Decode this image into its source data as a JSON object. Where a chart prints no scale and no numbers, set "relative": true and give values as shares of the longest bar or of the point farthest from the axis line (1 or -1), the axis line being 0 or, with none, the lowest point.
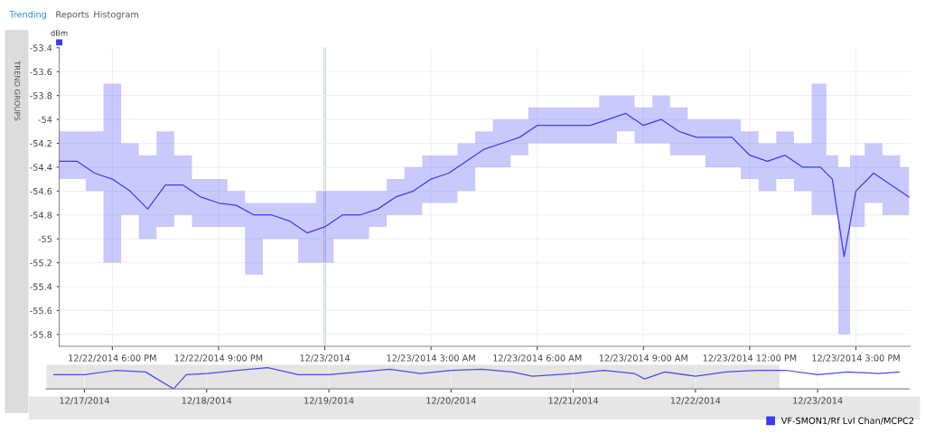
{
  "chart_data": [
    {
      "type": "line",
      "ylabel": "dBm",
      "annotations": [
        "Trending",
        "Reports",
        "Histogram",
        "TREND GROUPS"
      ],
      "x": [
        "2014-12-22T16:30",
        "2014-12-22T17:00",
        "2014-12-22T17:30",
        "2014-12-22T18:00",
        "2014-12-22T18:30",
        "2014-12-22T19:00",
        "2014-12-22T19:30",
        "2014-12-22T20:00",
        "2014-12-22T20:30",
        "2014-12-22T21:00",
        "2014-12-22T21:30",
        "2014-12-22T22:00",
        "2014-12-22T22:30",
        "2014-12-22T23:00",
        "2014-12-22T23:30",
        "2014-12-23T00:00",
        "2014-12-23T00:30",
        "2014-12-23T01:00",
        "2014-12-23T01:30",
        "2014-12-23T02:00",
        "2014-12-23T02:30",
        "2014-12-23T03:00",
        "2014-12-23T03:30",
        "2014-12-23T04:00",
        "2014-12-23T04:30",
        "2014-12-23T05:00",
        "2014-12-23T05:30",
        "2014-12-23T06:00",
        "2014-12-23T06:30",
        "2014-12-23T07:00",
        "2014-12-23T07:30",
        "2014-12-23T08:00",
        "2014-12-23T08:30",
        "2014-12-23T09:00",
        "2014-12-23T09:30",
        "2014-12-23T10:00",
        "2014-12-23T10:30",
        "2014-12-23T11:00",
        "2014-12-23T11:30",
        "2014-12-23T12:00",
        "2014-12-23T12:30",
        "2014-12-23T13:00",
        "2014-12-23T13:30",
        "2014-12-23T14:00",
        "2014-12-23T14:20",
        "2014-12-23T14:40",
        "2014-12-23T15:00",
        "2014-12-23T15:30",
        "2014-12-23T16:00",
        "2014-12-23T16:30"
      ],
      "series": [
        {
          "name": "VF-SMON1/Rf Lvl Chan/MCPC2",
          "color": "#3c3cf0",
          "values": [
            -54.35,
            -54.35,
            -54.45,
            -54.5,
            -54.6,
            -54.75,
            -54.55,
            -54.55,
            -54.65,
            -54.7,
            -54.72,
            -54.8,
            -54.8,
            -54.85,
            -54.95,
            -54.9,
            -54.8,
            -54.8,
            -54.75,
            -54.65,
            -54.6,
            -54.5,
            -54.45,
            -54.35,
            -54.25,
            -54.2,
            -54.15,
            -54.05,
            -54.05,
            -54.05,
            -54.05,
            -54.0,
            -53.95,
            -54.05,
            -54.0,
            -54.1,
            -54.15,
            -54.15,
            -54.15,
            -54.3,
            -54.35,
            -54.3,
            -54.4,
            -54.4,
            -54.5,
            -55.15,
            -54.6,
            -54.45,
            -54.55,
            -54.65
          ],
          "lower": [
            -54.5,
            -54.5,
            -54.6,
            -55.2,
            -54.8,
            -55.0,
            -54.9,
            -54.8,
            -54.9,
            -54.9,
            -54.9,
            -55.3,
            -55.0,
            -55.0,
            -55.2,
            -55.2,
            -55.0,
            -55.0,
            -54.9,
            -54.8,
            -54.8,
            -54.7,
            -54.7,
            -54.6,
            -54.4,
            -54.4,
            -54.3,
            -54.2,
            -54.2,
            -54.2,
            -54.2,
            -54.2,
            -54.1,
            -54.2,
            -54.2,
            -54.3,
            -54.3,
            -54.4,
            -54.4,
            -54.5,
            -54.6,
            -54.5,
            -54.6,
            -54.8,
            -54.8,
            -55.8,
            -54.9,
            -54.7,
            -54.8,
            -54.8
          ],
          "upper": [
            -54.1,
            -54.1,
            -54.1,
            -53.7,
            -54.2,
            -54.3,
            -54.1,
            -54.3,
            -54.5,
            -54.5,
            -54.6,
            -54.7,
            -54.7,
            -54.7,
            -54.7,
            -54.6,
            -54.6,
            -54.6,
            -54.6,
            -54.5,
            -54.4,
            -54.3,
            -54.3,
            -54.2,
            -54.1,
            -54.0,
            -54.0,
            -53.9,
            -53.9,
            -53.9,
            -53.9,
            -53.8,
            -53.8,
            -53.9,
            -53.8,
            -53.9,
            -54.0,
            -54.0,
            -54.0,
            -54.1,
            -54.2,
            -54.1,
            -54.2,
            -53.7,
            -54.3,
            -54.4,
            -54.3,
            -54.2,
            -54.3,
            -54.4
          ]
        }
      ],
      "xlim": [
        "2014-12-22T16:30",
        "2014-12-23T16:32"
      ],
      "xticks": [
        {
          "value": "2014-12-22T18:00",
          "label": "12/22/2014 6:00 PM"
        },
        {
          "value": "2014-12-22T21:00",
          "label": "12/22/2014 9:00 PM"
        },
        {
          "value": "2014-12-23T00:00",
          "label": "12/23/2014"
        },
        {
          "value": "2014-12-23T03:00",
          "label": "12/23/2014 3:00 AM"
        },
        {
          "value": "2014-12-23T06:00",
          "label": "12/23/2014 6:00 AM"
        },
        {
          "value": "2014-12-23T09:00",
          "label": "12/23/2014 9:00 AM"
        },
        {
          "value": "2014-12-23T12:00",
          "label": "12/23/2014 12:00 PM"
        },
        {
          "value": "2014-12-23T15:00",
          "label": "12/23/2014 3:00 PM"
        }
      ],
      "ylim": [
        -55.9,
        -53.4
      ],
      "yticks": [
        -55.8,
        -55.6,
        -55.4,
        -55.2,
        -55,
        -54.8,
        -54.6,
        -54.4,
        -54.2,
        -54,
        -53.8,
        -53.6,
        -53.4
      ],
      "ref_lines": [
        {
          "axis": "x",
          "value": "2014-12-23T00:00",
          "color": "#c8d2de"
        }
      ],
      "grid": true,
      "legend": "bottom right",
      "marker": "none",
      "line_style": "solid"
    },
    {
      "type": "line",
      "relative": true,
      "x": [
        "2014-12-16T18:00",
        "2014-12-17T00:00",
        "2014-12-17T06:00",
        "2014-12-17T12:00",
        "2014-12-17T17:30",
        "2014-12-17T20:00",
        "2014-12-18T00:00",
        "2014-12-18T06:00",
        "2014-12-18T12:00",
        "2014-12-18T18:00",
        "2014-12-19T00:00",
        "2014-12-19T06:00",
        "2014-12-19T12:00",
        "2014-12-19T18:00",
        "2014-12-20T00:00",
        "2014-12-20T06:00",
        "2014-12-20T12:00",
        "2014-12-20T16:00",
        "2014-12-21T00:00",
        "2014-12-21T06:00",
        "2014-12-21T12:00",
        "2014-12-21T14:00",
        "2014-12-21T18:00",
        "2014-12-22T00:00",
        "2014-12-22T06:00",
        "2014-12-22T12:00",
        "2014-12-22T18:00",
        "2014-12-23T00:00",
        "2014-12-23T06:00",
        "2014-12-23T12:00",
        "2014-12-23T16:00"
      ],
      "series": [
        {
          "color": "#4a4af0",
          "values": [
            0.67,
            0.67,
            0.87,
            0.8,
            0,
            0.67,
            0.73,
            0.87,
            1,
            0.67,
            0.67,
            0.8,
            0.93,
            0.73,
            0.87,
            0.93,
            0.8,
            0.6,
            0.73,
            0.87,
            0.73,
            0.47,
            0.8,
            0.6,
            0.8,
            0.87,
            0.87,
            0.67,
            0.8,
            0.73,
            0.8
          ]
        }
      ],
      "xlim": [
        "2014-12-16T16:30",
        "2014-12-23T18:00"
      ],
      "xticks": [
        {
          "value": "2014-12-17",
          "label": "12/17/2014"
        },
        {
          "value": "2014-12-18",
          "label": "12/18/2014"
        },
        {
          "value": "2014-12-19",
          "label": "12/19/2014"
        },
        {
          "value": "2014-12-20",
          "label": "12/20/2014"
        },
        {
          "value": "2014-12-21",
          "label": "12/21/2014"
        },
        {
          "value": "2014-12-22",
          "label": "12/22/2014"
        },
        {
          "value": "2014-12-23",
          "label": "12/23/2014"
        }
      ],
      "bands": [
        {
          "axis": "x",
          "from": "2014-12-16T16:30",
          "to": "2014-12-22T16:30",
          "color": "#e4e4e4"
        }
      ],
      "grid": "x",
      "tick_labels": "x",
      "marker": "none",
      "line_style": "solid"
    }
  ]
}
